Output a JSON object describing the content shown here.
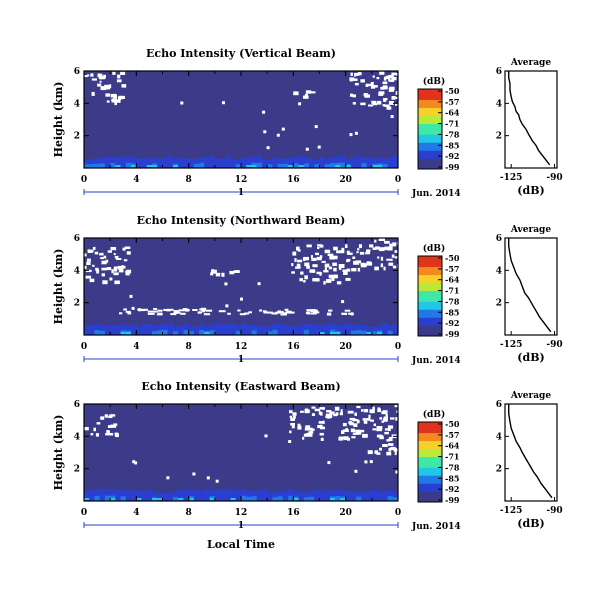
{
  "page": {
    "xlabel": "Local Time",
    "date_label": "Jun. 2014",
    "colorbar_unit": "(dB)",
    "average_title": "Average",
    "average_xlabel": "(dB)",
    "ylabel": "Height (km)"
  },
  "colorscale": {
    "ticks": [
      "-50",
      "-57",
      "-64",
      "-71",
      "-78",
      "-85",
      "-92",
      "-99"
    ],
    "colors": [
      "#3b3b8a",
      "#2a3fd0",
      "#1e7be6",
      "#22c7e8",
      "#3ee8a8",
      "#b8ea3a",
      "#f4d22a",
      "#f38a1f",
      "#e2331c"
    ]
  },
  "chart_data": [
    {
      "type": "heatmap",
      "title": "Echo Intensity (Vertical Beam)",
      "x_ticks": [
        "0",
        "4",
        "8",
        "12",
        "16",
        "20",
        "0"
      ],
      "y_ticks": [
        "6",
        "4",
        "2"
      ],
      "xlim": [
        0,
        24
      ],
      "ylim": [
        0,
        6
      ],
      "day_marker": "1",
      "average": {
        "title": "Average",
        "xlabel": "(dB)",
        "x_ticks": [
          "-125",
          "-90"
        ],
        "y_ticks": [
          "6",
          "4",
          "2"
        ],
        "xlim": [
          -130,
          -88
        ],
        "profile": [
          [
            -94,
            0.2
          ],
          [
            -97,
            0.5
          ],
          [
            -100,
            0.8
          ],
          [
            -103,
            1.1
          ],
          [
            -105,
            1.4
          ],
          [
            -108,
            1.7
          ],
          [
            -111,
            2.1
          ],
          [
            -113,
            2.4
          ],
          [
            -116,
            2.7
          ],
          [
            -118,
            3.0
          ],
          [
            -119,
            3.3
          ],
          [
            -121,
            3.5
          ],
          [
            -122,
            3.8
          ],
          [
            -124,
            4.1
          ],
          [
            -125,
            4.4
          ],
          [
            -126,
            4.8
          ],
          [
            -126,
            5.2
          ],
          [
            -127,
            5.6
          ],
          [
            -127,
            6.0
          ]
        ]
      }
    },
    {
      "type": "heatmap",
      "title": "Echo Intensity (Northward Beam)",
      "x_ticks": [
        "0",
        "4",
        "8",
        "12",
        "16",
        "20",
        "0"
      ],
      "y_ticks": [
        "6",
        "4",
        "2"
      ],
      "xlim": [
        0,
        24
      ],
      "ylim": [
        0,
        6
      ],
      "day_marker": "1",
      "average": {
        "title": "Average",
        "xlabel": "(dB)",
        "x_ticks": [
          "-125",
          "-90"
        ],
        "y_ticks": [
          "6",
          "4",
          "2"
        ],
        "xlim": [
          -130,
          -88
        ],
        "profile": [
          [
            -93,
            0.2
          ],
          [
            -96,
            0.5
          ],
          [
            -99,
            0.8
          ],
          [
            -102,
            1.1
          ],
          [
            -105,
            1.5
          ],
          [
            -108,
            1.9
          ],
          [
            -111,
            2.3
          ],
          [
            -114,
            2.6
          ],
          [
            -116,
            3.0
          ],
          [
            -118,
            3.4
          ],
          [
            -121,
            3.8
          ],
          [
            -123,
            4.2
          ],
          [
            -125,
            4.6
          ],
          [
            -126,
            5.0
          ],
          [
            -127,
            5.5
          ],
          [
            -127,
            6.0
          ]
        ]
      }
    },
    {
      "type": "heatmap",
      "title": "Echo Intensity (Eastward Beam)",
      "x_ticks": [
        "0",
        "4",
        "8",
        "12",
        "16",
        "20",
        "0"
      ],
      "y_ticks": [
        "6",
        "4",
        "2"
      ],
      "xlim": [
        0,
        24
      ],
      "ylim": [
        0,
        6
      ],
      "day_marker": "1",
      "average": {
        "title": "Average",
        "xlabel": "(dB)",
        "x_ticks": [
          "-125",
          "-90"
        ],
        "y_ticks": [
          "6",
          "4",
          "2"
        ],
        "xlim": [
          -130,
          -88
        ],
        "profile": [
          [
            -92,
            0.2
          ],
          [
            -95,
            0.5
          ],
          [
            -98,
            0.8
          ],
          [
            -101,
            1.1
          ],
          [
            -104,
            1.5
          ],
          [
            -107,
            1.8
          ],
          [
            -110,
            2.2
          ],
          [
            -113,
            2.6
          ],
          [
            -116,
            3.0
          ],
          [
            -118,
            3.3
          ],
          [
            -121,
            3.7
          ],
          [
            -123,
            4.1
          ],
          [
            -125,
            4.5
          ],
          [
            -126,
            4.9
          ],
          [
            -127,
            5.4
          ],
          [
            -127,
            6.0
          ]
        ]
      }
    }
  ]
}
